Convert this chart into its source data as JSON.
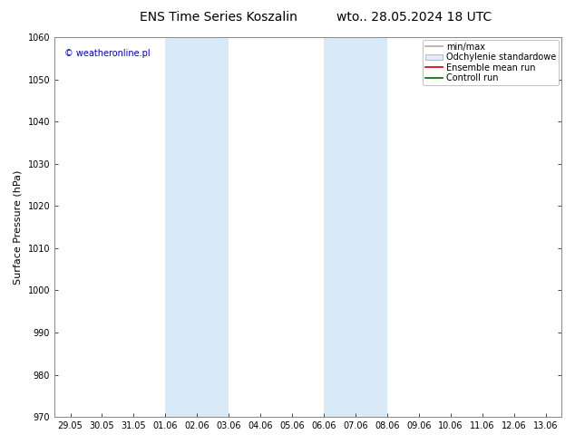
{
  "title_left": "ENS Time Series Koszalin",
  "title_right": "wto.. 28.05.2024 18 UTC",
  "ylabel": "Surface Pressure (hPa)",
  "ylim": [
    970,
    1060
  ],
  "yticks": [
    970,
    980,
    990,
    1000,
    1010,
    1020,
    1030,
    1040,
    1050,
    1060
  ],
  "x_labels": [
    "29.05",
    "30.05",
    "31.05",
    "01.06",
    "02.06",
    "03.06",
    "04.06",
    "05.06",
    "06.06",
    "07.06",
    "08.06",
    "09.06",
    "10.06",
    "11.06",
    "12.06",
    "13.06"
  ],
  "x_positions": [
    0,
    1,
    2,
    3,
    4,
    5,
    6,
    7,
    8,
    9,
    10,
    11,
    12,
    13,
    14,
    15
  ],
  "xlim": [
    -0.5,
    15.5
  ],
  "shaded_bands": [
    {
      "xmin": 3.0,
      "xmax": 5.0
    },
    {
      "xmin": 8.0,
      "xmax": 10.0
    }
  ],
  "shade_color": "#d8eaf8",
  "background_color": "#ffffff",
  "plot_bg_color": "#ffffff",
  "grid_color": "#cccccc",
  "watermark_text": "© weatheronline.pl",
  "watermark_color": "#0000bb",
  "legend_items": [
    {
      "label": "min/max",
      "color": "#aaaaaa",
      "type": "line"
    },
    {
      "label": "Odchylenie standardowe",
      "color": "#bbbbbb",
      "type": "box"
    },
    {
      "label": "Ensemble mean run",
      "color": "#cc0000",
      "type": "line"
    },
    {
      "label": "Controll run",
      "color": "#006600",
      "type": "line"
    }
  ],
  "title_fontsize": 10,
  "tick_fontsize": 7,
  "ylabel_fontsize": 8,
  "legend_fontsize": 7,
  "watermark_fontsize": 7
}
